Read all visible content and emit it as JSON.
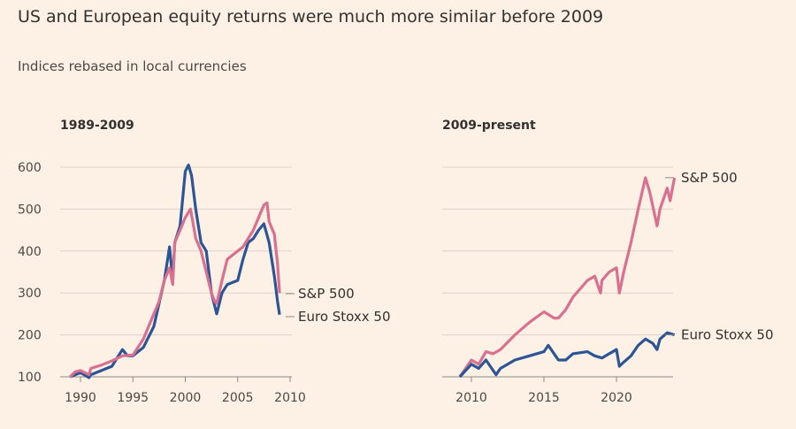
{
  "title": "US and European equity returns were much more similar before 2009",
  "subtitle": "Indices rebased in local currencies",
  "colors": {
    "sp500": "#d9708f",
    "eurostoxx": "#2b5595",
    "grid": "#dcd2c7",
    "background": "#fdf1e6"
  },
  "chart_data": [
    {
      "type": "line",
      "title": "1989-2009",
      "ylim": [
        100,
        600
      ],
      "yticks": [
        "100",
        "200",
        "300",
        "400",
        "500",
        "600"
      ],
      "xlim": [
        1988.9,
        2010
      ],
      "xticks": [
        "1990",
        "1995",
        "2000",
        "2005",
        "2010"
      ],
      "grid": true,
      "series": [
        {
          "name": "S&P 500",
          "key": "sp500",
          "x": [
            1989,
            1989.5,
            1990,
            1990.8,
            1991,
            1992,
            1993,
            1994,
            1995,
            1996,
            1997,
            1997.5,
            1998,
            1998.5,
            1998.8,
            1999,
            1999.5,
            2000,
            2000.5,
            2001,
            2001.5,
            2002,
            2002.5,
            2002.8,
            2003,
            2003.5,
            2004,
            2004.5,
            2005,
            2005.5,
            2006,
            2006.5,
            2007,
            2007.5,
            2007.8,
            2008,
            2008.5,
            2008.8,
            2009
          ],
          "y": [
            100,
            112,
            115,
            105,
            120,
            128,
            138,
            150,
            152,
            190,
            250,
            280,
            330,
            360,
            320,
            420,
            450,
            480,
            500,
            430,
            400,
            350,
            300,
            280,
            275,
            330,
            380,
            390,
            400,
            410,
            430,
            450,
            480,
            510,
            515,
            470,
            440,
            370,
            300
          ]
        },
        {
          "name": "Euro Stoxx 50",
          "key": "eurostoxx",
          "x": [
            1989,
            1990,
            1990.8,
            1991,
            1992,
            1993,
            1994,
            1994.5,
            1995,
            1996,
            1997,
            1998,
            1998.5,
            1998.8,
            1999,
            1999.5,
            2000,
            2000.3,
            2000.6,
            2001,
            2001.5,
            2002,
            2002.5,
            2003,
            2003.5,
            2004,
            2004.5,
            2005,
            2005.5,
            2006,
            2006.5,
            2007,
            2007.5,
            2008,
            2008.5,
            2008.8,
            2009
          ],
          "y": [
            100,
            110,
            98,
            105,
            115,
            125,
            165,
            150,
            150,
            170,
            220,
            330,
            410,
            330,
            420,
            460,
            590,
            605,
            580,
            500,
            420,
            400,
            300,
            250,
            300,
            320,
            325,
            330,
            380,
            420,
            430,
            450,
            465,
            420,
            340,
            280,
            248
          ]
        }
      ]
    },
    {
      "type": "line",
      "title": "2009-present",
      "ylim": [
        100,
        600
      ],
      "xlim": [
        2008.2,
        2024.1
      ],
      "xticks": [
        "2010",
        "2015",
        "2020"
      ],
      "grid": true,
      "series": [
        {
          "name": "S&P 500",
          "key": "sp500",
          "x": [
            2009.2,
            2010,
            2010.5,
            2011,
            2011.5,
            2012,
            2013,
            2014,
            2015,
            2015.7,
            2016,
            2016.5,
            2017,
            2018,
            2018.5,
            2018.9,
            2019,
            2019.5,
            2020,
            2020.2,
            2020.5,
            2021,
            2021.5,
            2022,
            2022.3,
            2022.8,
            2023,
            2023.5,
            2023.7,
            2024
          ],
          "y": [
            100,
            140,
            130,
            160,
            155,
            165,
            200,
            230,
            255,
            240,
            240,
            260,
            290,
            330,
            340,
            300,
            330,
            350,
            360,
            300,
            350,
            420,
            500,
            575,
            540,
            460,
            500,
            550,
            520,
            575
          ]
        },
        {
          "name": "Euro Stoxx 50",
          "key": "eurostoxx",
          "x": [
            2009.2,
            2010,
            2010.5,
            2011,
            2011.7,
            2012,
            2013,
            2014,
            2015,
            2015.3,
            2015.8,
            2016,
            2016.5,
            2017,
            2018,
            2018.5,
            2019,
            2019.5,
            2020,
            2020.2,
            2020.5,
            2021,
            2021.5,
            2022,
            2022.5,
            2022.8,
            2023,
            2023.5,
            2024
          ],
          "y": [
            100,
            130,
            120,
            140,
            105,
            120,
            140,
            150,
            160,
            175,
            150,
            140,
            140,
            155,
            160,
            150,
            145,
            155,
            165,
            125,
            135,
            150,
            175,
            190,
            180,
            165,
            190,
            205,
            200
          ]
        }
      ]
    }
  ]
}
